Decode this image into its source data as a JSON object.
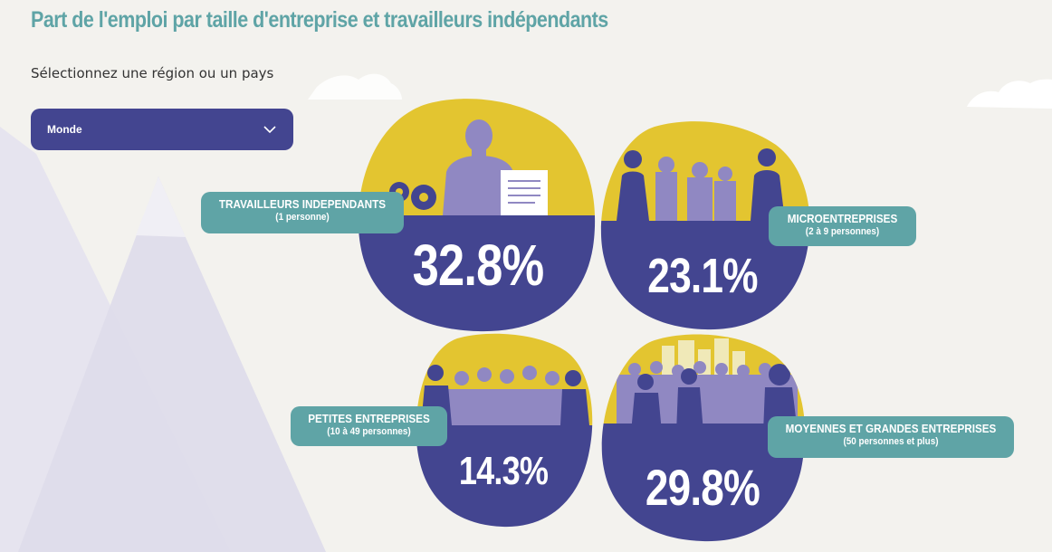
{
  "page": {
    "title": "Part de l'emploi par taille d'entreprise et travailleurs indépendants",
    "select_label": "Sélectionnez une région ou un pays"
  },
  "region_select": {
    "selected": "Monde",
    "icon": "chevron-down-icon"
  },
  "categories": [
    {
      "label": "TRAVAILLEURS INDEPENDANTS",
      "sublabel": "(1 personne)",
      "value_text": "32.8%",
      "value": 32.8
    },
    {
      "label": "MICROENTREPRISES",
      "sublabel": "(2 à 9 personnes)",
      "value_text": "23.1%",
      "value": 23.1
    },
    {
      "label": "PETITES ENTREPRISES",
      "sublabel": "(10 à 49 personnes)",
      "value_text": "14.3%",
      "value": 14.3
    },
    {
      "label": "MOYENNES ET GRANDES ENTREPRISES",
      "sublabel": "(50 personnes et plus)",
      "value_text": "29.8%",
      "value": 29.8
    }
  ],
  "colors": {
    "title": "#5fa4a6",
    "select_bg": "#434590",
    "blob_top": "#e3c530",
    "blob_bottom": "#434590",
    "silhouette": "#9088c2",
    "tag_bg": "#5fa4a6",
    "background": "#f3f2ee"
  }
}
